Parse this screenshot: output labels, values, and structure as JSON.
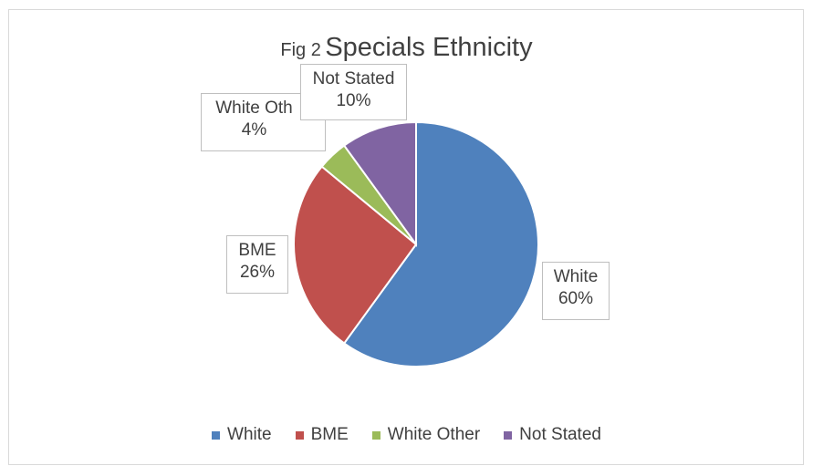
{
  "chart_data": {
    "type": "pie",
    "title_prefix": "Fig 2",
    "title": "Specials Ethnicity",
    "slices": [
      {
        "label": "White",
        "value": 60,
        "display": "60%",
        "color": "#4f81bd"
      },
      {
        "label": "BME",
        "value": 26,
        "display": "26%",
        "color": "#c0504d"
      },
      {
        "label": "White Other",
        "value": 4,
        "display": "4%",
        "color": "#9bbb59",
        "label_visible": "White Oth"
      },
      {
        "label": "Not Stated",
        "value": 10,
        "display": "10%",
        "color": "#8064a2"
      }
    ],
    "legend_position": "bottom"
  }
}
